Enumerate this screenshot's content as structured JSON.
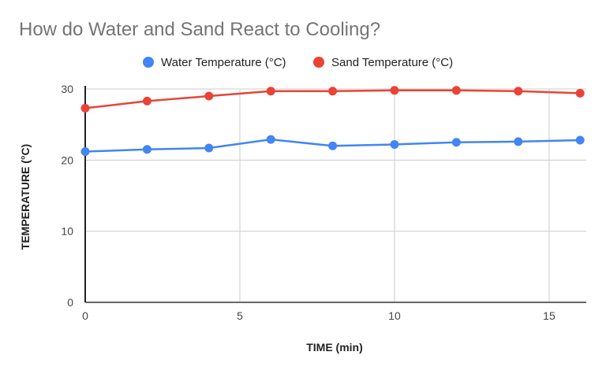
{
  "chart_data": {
    "type": "line",
    "title": "How do Water and Sand React to Cooling?",
    "xlabel": "TIME (min)",
    "ylabel": "TEMPERATURE (°C)",
    "xlim": [
      0,
      16.2
    ],
    "ylim": [
      0,
      30
    ],
    "x_ticks": [
      0,
      5,
      10,
      15
    ],
    "y_ticks": [
      0,
      10,
      20,
      30
    ],
    "grid": true,
    "legend_position": "top",
    "x": [
      0,
      2,
      4,
      6,
      8,
      10,
      12,
      14,
      16
    ],
    "series": [
      {
        "name": "Water Temperature (°C)",
        "color": "#4285f4",
        "values": [
          21.2,
          21.5,
          21.7,
          22.9,
          22.0,
          22.2,
          22.5,
          22.6,
          22.8
        ]
      },
      {
        "name": "Sand Temperature (°C)",
        "color": "#ea4335",
        "values": [
          27.3,
          28.3,
          29.0,
          29.7,
          29.7,
          29.8,
          29.8,
          29.7,
          29.4
        ]
      }
    ]
  }
}
